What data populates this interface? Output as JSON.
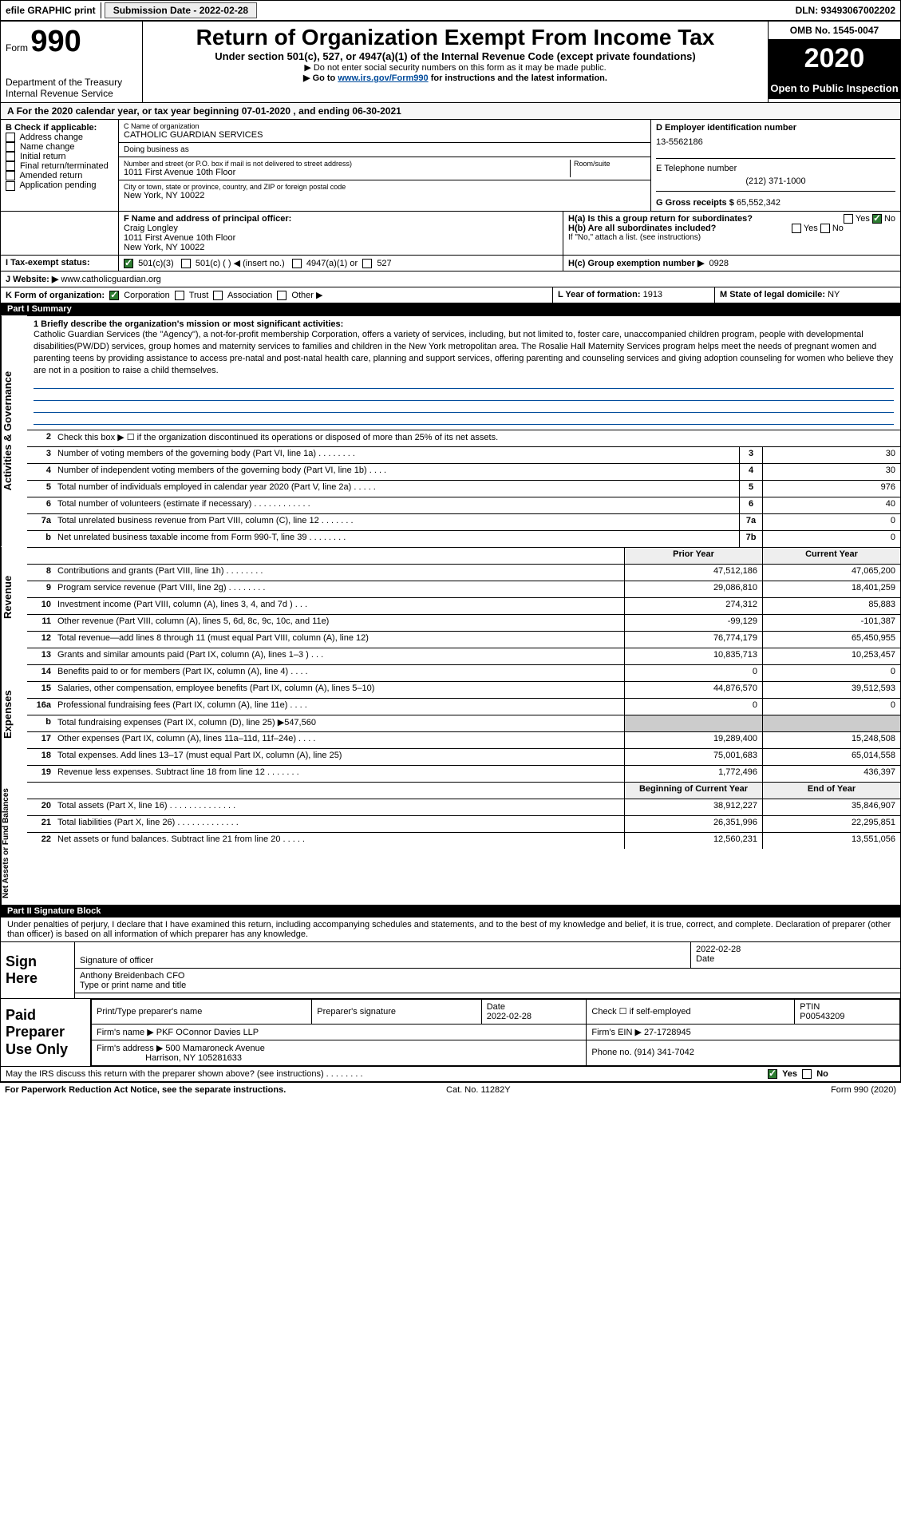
{
  "topbar": {
    "efile": "efile GRAPHIC print",
    "submission_label": "Submission Date - 2022-02-28",
    "dln": "DLN: 93493067002202"
  },
  "header": {
    "form_label": "Form",
    "form_num": "990",
    "dept1": "Department of the Treasury",
    "dept2": "Internal Revenue Service",
    "title": "Return of Organization Exempt From Income Tax",
    "sub": "Under section 501(c), 527, or 4947(a)(1) of the Internal Revenue Code (except private foundations)",
    "note1": "▶ Do not enter social security numbers on this form as it may be made public.",
    "note2a": "▶ Go to ",
    "note2b": "www.irs.gov/Form990",
    "note2c": " for instructions and the latest information.",
    "omb": "OMB No. 1545-0047",
    "year": "2020",
    "open": "Open to Public Inspection"
  },
  "A": {
    "text": "For the 2020 calendar year, or tax year beginning 07-01-2020    , and ending 06-30-2021"
  },
  "B": {
    "label": "B Check if applicable:",
    "opts": [
      "Address change",
      "Name change",
      "Initial return",
      "Final return/terminated",
      "Amended return",
      "Application pending"
    ]
  },
  "C": {
    "name_label": "C Name of organization",
    "name": "CATHOLIC GUARDIAN SERVICES",
    "dba_label": "Doing business as",
    "dba": "",
    "addr_label": "Number and street (or P.O. box if mail is not delivered to street address)",
    "room_label": "Room/suite",
    "addr": "1011 First Avenue 10th Floor",
    "city_label": "City or town, state or province, country, and ZIP or foreign postal code",
    "city": "New York, NY  10022"
  },
  "D": {
    "label": "D Employer identification number",
    "value": "13-5562186"
  },
  "E": {
    "label": "E Telephone number",
    "value": "(212) 371-1000"
  },
  "G": {
    "label": "G Gross receipts $",
    "value": "65,552,342"
  },
  "F": {
    "label": "F  Name and address of principal officer:",
    "name": "Craig Longley",
    "addr1": "1011 First Avenue 10th Floor",
    "addr2": "New York, NY  10022"
  },
  "H": {
    "a": "H(a)  Is this a group return for subordinates?",
    "b": "H(b)  Are all subordinates included?",
    "note": "If \"No,\" attach a list. (see instructions)",
    "c": "H(c)  Group exemption number ▶",
    "cval": "0928",
    "yes": "Yes",
    "no": "No"
  },
  "I": {
    "label": "I   Tax-exempt status:",
    "o1": "501(c)(3)",
    "o2": "501(c) (  ) ◀ (insert no.)",
    "o3": "4947(a)(1) or",
    "o4": "527"
  },
  "J": {
    "label": "J   Website: ▶",
    "value": "www.catholicguardian.org"
  },
  "K": {
    "label": "K Form of organization:",
    "o1": "Corporation",
    "o2": "Trust",
    "o3": "Association",
    "o4": "Other ▶"
  },
  "L": {
    "label": "L Year of formation:",
    "value": "1913"
  },
  "M": {
    "label": "M State of legal domicile:",
    "value": "NY"
  },
  "partI": {
    "title": "Part I      Summary",
    "mission_label": "1  Briefly describe the organization's mission or most significant activities:",
    "mission": "Catholic Guardian Services (the \"Agency\"), a not-for-profit membership Corporation, offers a variety of services, including, but not limited to, foster care, unaccompanied children program, people with developmental disabilities(PW/DD) services, group homes and maternity services to families and children in the New York metropolitan area. The Rosalie Hall Maternity Services program helps meet the needs of pregnant women and parenting teens by providing assistance to access pre-natal and post-natal health care, planning and support services, offering parenting and counseling services and giving adoption counseling for women who believe they are not in a position to raise a child themselves.",
    "line2": "Check this box ▶ ☐ if the organization discontinued its operations or disposed of more than 25% of its net assets.",
    "rows_simple": [
      {
        "n": "3",
        "t": "Number of voting members of the governing body (Part VI, line 1a)   .    .    .    .    .    .    .    .",
        "bx": "3",
        "v": "30"
      },
      {
        "n": "4",
        "t": "Number of independent voting members of the governing body (Part VI, line 1b)  .    .    .    .",
        "bx": "4",
        "v": "30"
      },
      {
        "n": "5",
        "t": "Total number of individuals employed in calendar year 2020 (Part V, line 2a)  .    .    .    .    .",
        "bx": "5",
        "v": "976"
      },
      {
        "n": "6",
        "t": "Total number of volunteers (estimate if necessary)   .    .    .    .    .    .    .    .    .    .    .    .",
        "bx": "6",
        "v": "40"
      },
      {
        "n": "7a",
        "t": "Total unrelated business revenue from Part VIII, column (C), line 12   .    .    .    .    .    .    .",
        "bx": "7a",
        "v": "0"
      },
      {
        "n": "b",
        "t": "Net unrelated business taxable income from Form 990-T, line 39   .    .    .    .    .    .    .    .",
        "bx": "7b",
        "v": "0"
      }
    ],
    "col_prior": "Prior Year",
    "col_current": "Current Year",
    "rows_rev": [
      {
        "n": "8",
        "t": "Contributions and grants (Part VIII, line 1h)   .    .    .    .    .    .    .    .",
        "p": "47,512,186",
        "c": "47,065,200"
      },
      {
        "n": "9",
        "t": "Program service revenue (Part VIII, line 2g)   .    .    .    .    .    .    .    .",
        "p": "29,086,810",
        "c": "18,401,259"
      },
      {
        "n": "10",
        "t": "Investment income (Part VIII, column (A), lines 3, 4, and 7d )   .    .    .",
        "p": "274,312",
        "c": "85,883"
      },
      {
        "n": "11",
        "t": "Other revenue (Part VIII, column (A), lines 5, 6d, 8c, 9c, 10c, and 11e)",
        "p": "-99,129",
        "c": "-101,387"
      },
      {
        "n": "12",
        "t": "Total revenue—add lines 8 through 11 (must equal Part VIII, column (A), line 12)",
        "p": "76,774,179",
        "c": "65,450,955"
      }
    ],
    "rows_exp": [
      {
        "n": "13",
        "t": "Grants and similar amounts paid (Part IX, column (A), lines 1–3 )   .    .    .",
        "p": "10,835,713",
        "c": "10,253,457"
      },
      {
        "n": "14",
        "t": "Benefits paid to or for members (Part IX, column (A), line 4)   .    .    .    .",
        "p": "0",
        "c": "0"
      },
      {
        "n": "15",
        "t": "Salaries, other compensation, employee benefits (Part IX, column (A), lines 5–10)",
        "p": "44,876,570",
        "c": "39,512,593"
      },
      {
        "n": "16a",
        "t": "Professional fundraising fees (Part IX, column (A), line 11e)   .    .    .    .",
        "p": "0",
        "c": "0"
      },
      {
        "n": "b",
        "t": "Total fundraising expenses (Part IX, column (D), line 25) ▶547,560",
        "p": "",
        "c": "",
        "shade": true
      },
      {
        "n": "17",
        "t": "Other expenses (Part IX, column (A), lines 11a–11d, 11f–24e)   .    .    .    .",
        "p": "19,289,400",
        "c": "15,248,508"
      },
      {
        "n": "18",
        "t": "Total expenses. Add lines 13–17 (must equal Part IX, column (A), line 25)",
        "p": "75,001,683",
        "c": "65,014,558"
      },
      {
        "n": "19",
        "t": "Revenue less expenses. Subtract line 18 from line 12   .    .    .    .    .    .    .",
        "p": "1,772,496",
        "c": "436,397"
      }
    ],
    "col_begin": "Beginning of Current Year",
    "col_end": "End of Year",
    "rows_net": [
      {
        "n": "20",
        "t": "Total assets (Part X, line 16)   .    .    .    .    .    .    .    .    .    .    .    .    .    .",
        "p": "38,912,227",
        "c": "35,846,907"
      },
      {
        "n": "21",
        "t": "Total liabilities (Part X, line 26)   .    .    .    .    .    .    .    .    .    .    .    .    .",
        "p": "26,351,996",
        "c": "22,295,851"
      },
      {
        "n": "22",
        "t": "Net assets or fund balances. Subtract line 21 from line 20   .    .    .    .    .",
        "p": "12,560,231",
        "c": "13,551,056"
      }
    ],
    "sides": [
      "Activities & Governance",
      "Revenue",
      "Expenses",
      "Net Assets or Fund Balances"
    ]
  },
  "partII": {
    "title": "Part II      Signature Block",
    "decl": "Under penalties of perjury, I declare that I have examined this return, including accompanying schedules and statements, and to the best of my knowledge and belief, it is true, correct, and complete. Declaration of preparer (other than officer) is based on all information of which preparer has any knowledge.",
    "sign_here": "Sign Here",
    "sig_officer": "Signature of officer",
    "date_label": "Date",
    "sig_date": "2022-02-28",
    "officer_name": "Anthony Breidenbach CFO",
    "type_label": "Type or print name and title",
    "paid": "Paid Preparer Use Only",
    "prep_name_label": "Print/Type preparer's name",
    "prep_sig_label": "Preparer's signature",
    "prep_date_label": "Date",
    "prep_date": "2022-02-28",
    "self_emp": "Check ☐ if self-employed",
    "ptin_label": "PTIN",
    "ptin": "P00543209",
    "firm_name_label": "Firm's name    ▶",
    "firm_name": "PKF OConnor Davies LLP",
    "firm_ein_label": "Firm's EIN ▶",
    "firm_ein": "27-1728945",
    "firm_addr_label": "Firm's address ▶",
    "firm_addr1": "500 Mamaroneck Avenue",
    "firm_addr2": "Harrison, NY  105281633",
    "phone_label": "Phone no.",
    "phone": "(914) 341-7042",
    "discuss": "May the IRS discuss this return with the preparer shown above? (see instructions)   .    .    .    .    .    .    .    .",
    "yes": "Yes",
    "no": "No"
  },
  "footer": {
    "l": "For Paperwork Reduction Act Notice, see the separate instructions.",
    "m": "Cat. No. 11282Y",
    "r": "Form 990 (2020)"
  }
}
